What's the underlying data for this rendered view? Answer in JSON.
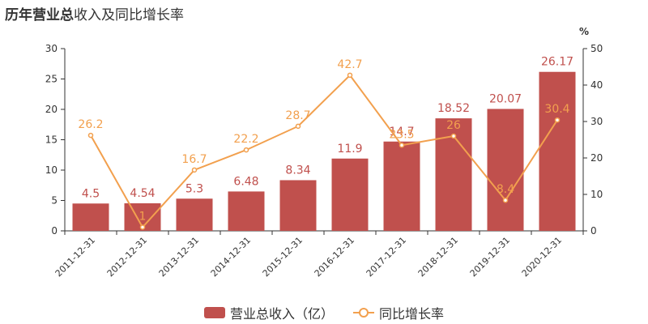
{
  "title": {
    "bold_part": "历年营业总",
    "rest_part": "收入及同比增长率"
  },
  "colors": {
    "bar": "#c0504d",
    "line": "#f2a04e",
    "axis": "#333333"
  },
  "chart_data": {
    "type": "bar",
    "categories": [
      "2011-12-31",
      "2012-12-31",
      "2013-12-31",
      "2014-12-31",
      "2015-12-31",
      "2016-12-31",
      "2017-12-31",
      "2018-12-31",
      "2019-12-31",
      "2020-12-31"
    ],
    "series": [
      {
        "name": "营业总收入（亿）",
        "type": "bar",
        "axis": "left",
        "values": [
          4.5,
          4.54,
          5.3,
          6.48,
          8.34,
          11.9,
          14.7,
          18.52,
          20.07,
          26.17
        ],
        "labels": [
          "4.5",
          "4.54",
          "5.3",
          "6.48",
          "8.34",
          "11.9",
          "14.7",
          "18.52",
          "20.07",
          "26.17"
        ]
      },
      {
        "name": "同比增长率",
        "type": "line",
        "axis": "right",
        "values": [
          26.2,
          1,
          16.7,
          22.2,
          28.7,
          42.7,
          23.5,
          26,
          8.4,
          30.4
        ],
        "labels": [
          "26.2",
          "1",
          "16.7",
          "22.2",
          "28.7",
          "42.7",
          "23.5",
          "26",
          "8.4",
          "30.4"
        ]
      }
    ],
    "y_left": {
      "min": 0,
      "max": 30,
      "ticks": [
        "0",
        "5",
        "10",
        "15",
        "20",
        "25",
        "30"
      ]
    },
    "y_right": {
      "min": 0,
      "max": 50,
      "ticks": [
        "0",
        "10",
        "20",
        "30",
        "40",
        "50"
      ],
      "unit": "%"
    },
    "legend_position": "bottom-center",
    "grid": false
  }
}
